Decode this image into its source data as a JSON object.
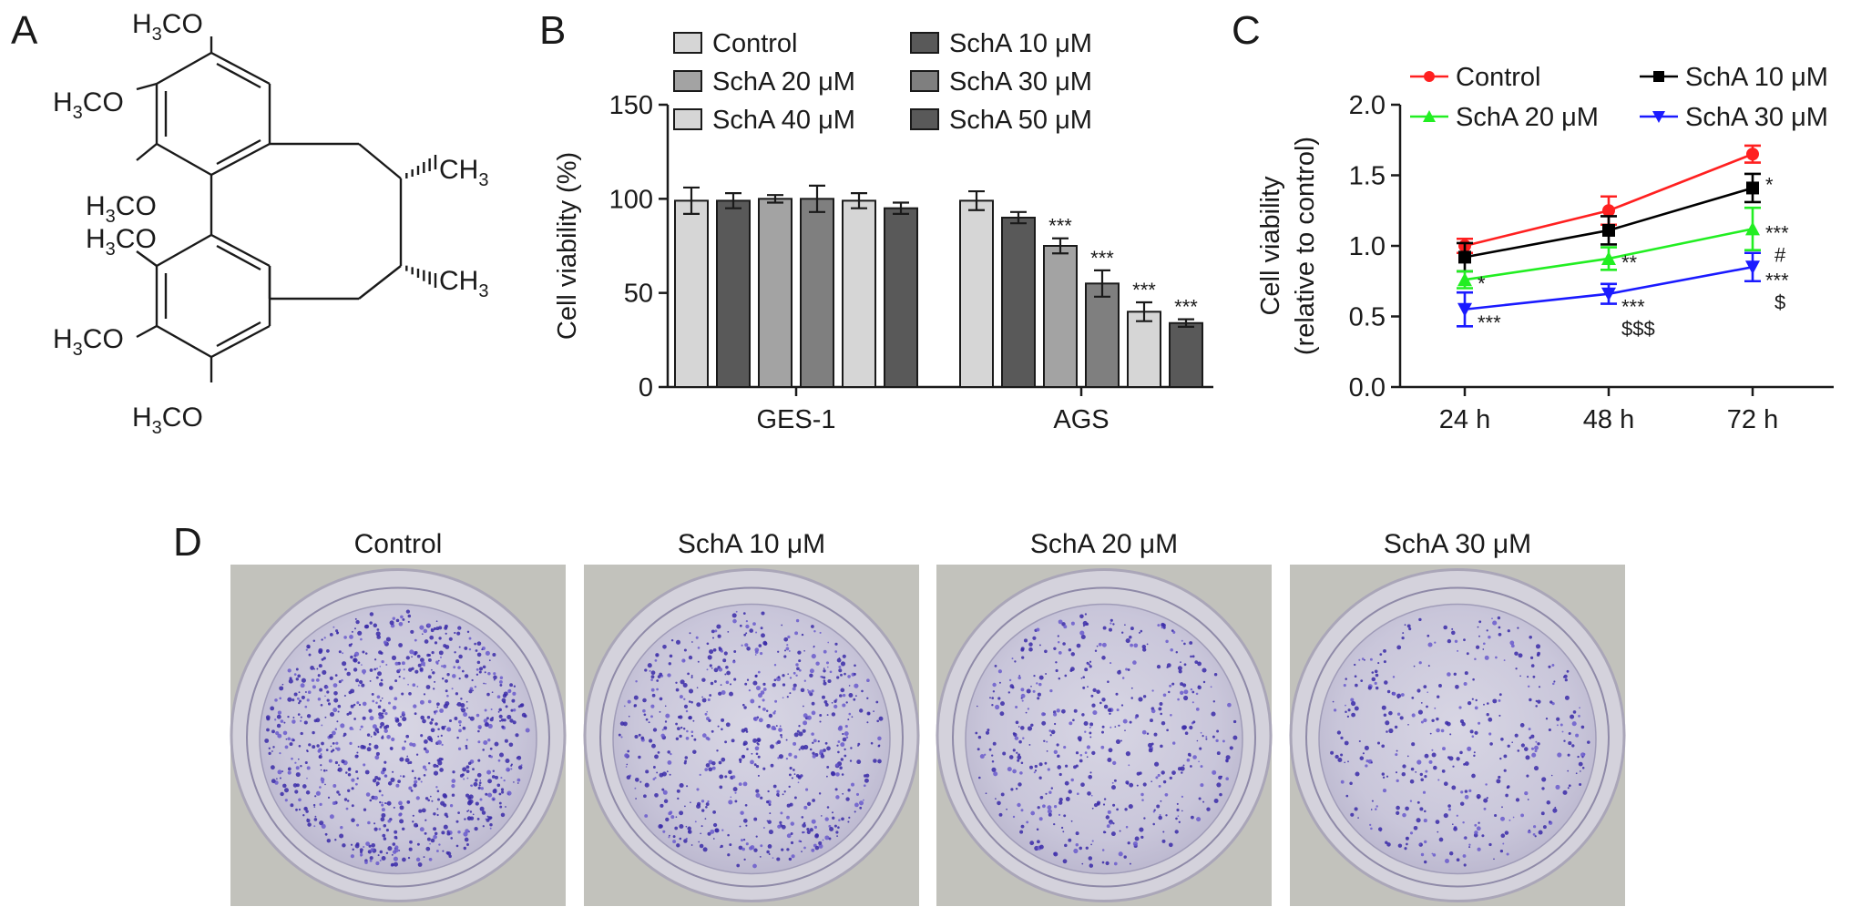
{
  "panels": {
    "a": "A",
    "b": "B",
    "c": "C",
    "d": "D"
  },
  "structure": {
    "labels": [
      "H3CO",
      "H3CO",
      "H3CO",
      "H3CO",
      "H3CO",
      "H3CO",
      "CH3",
      "CH3"
    ]
  },
  "chart_data": [
    {
      "panel": "B",
      "type": "bar",
      "categories": [
        "GES-1",
        "AGS"
      ],
      "ylabel": "Cell viability (%)",
      "xlabel": "",
      "ylim": [
        0,
        150
      ],
      "yticks": [
        0,
        50,
        100,
        150
      ],
      "legend_position": "top",
      "series": [
        {
          "name": "Control",
          "values": [
            99,
            99
          ],
          "errors": [
            7,
            5
          ],
          "color": "#d6d6d6",
          "sig": [
            "",
            ""
          ]
        },
        {
          "name": "SchA 10 μM",
          "values": [
            99,
            90
          ],
          "errors": [
            4,
            3
          ],
          "color": "#595959",
          "sig": [
            "",
            ""
          ]
        },
        {
          "name": "SchA 20 μM",
          "values": [
            100,
            75
          ],
          "errors": [
            2,
            4
          ],
          "color": "#a3a3a3",
          "sig": [
            "",
            "***"
          ]
        },
        {
          "name": "SchA 30 μM",
          "values": [
            100,
            55
          ],
          "errors": [
            7,
            7
          ],
          "color": "#7f7f7f",
          "sig": [
            "",
            "***"
          ]
        },
        {
          "name": "SchA 40 μM",
          "values": [
            99,
            40
          ],
          "errors": [
            4,
            5
          ],
          "color": "#d6d6d6",
          "sig": [
            "",
            "***"
          ]
        },
        {
          "name": "SchA 50 μM",
          "values": [
            95,
            34
          ],
          "errors": [
            3,
            2
          ],
          "color": "#595959",
          "sig": [
            "",
            "***"
          ]
        }
      ]
    },
    {
      "panel": "C",
      "type": "line",
      "categories": [
        "24 h",
        "48 h",
        "72 h"
      ],
      "ylabel_line1": "Cell viability",
      "ylabel_line2": "(relative to control)",
      "ylim": [
        0.0,
        2.0
      ],
      "yticks": [
        "0.0",
        "0.5",
        "1.0",
        "1.5",
        "2.0"
      ],
      "legend_position": "top",
      "series": [
        {
          "name": "Control",
          "marker": "circle",
          "color": "#ff2020",
          "values": [
            1.0,
            1.25,
            1.65
          ],
          "errors": [
            0.05,
            0.1,
            0.06
          ],
          "sig": [
            "",
            "",
            ""
          ]
        },
        {
          "name": "SchA 10 μM",
          "marker": "square",
          "color": "#000000",
          "values": [
            0.92,
            1.11,
            1.41
          ],
          "errors": [
            0.1,
            0.1,
            0.1
          ],
          "sig": [
            "",
            "",
            "*"
          ]
        },
        {
          "name": "SchA 20 μM",
          "marker": "triangle-up",
          "color": "#22ee22",
          "values": [
            0.76,
            0.91,
            1.12
          ],
          "errors": [
            0.06,
            0.08,
            0.15
          ],
          "sig": [
            "*",
            "**",
            "***\n#"
          ]
        },
        {
          "name": "SchA 30 μM",
          "marker": "triangle-down",
          "color": "#1a1aff",
          "values": [
            0.55,
            0.66,
            0.85
          ],
          "errors": [
            0.12,
            0.07,
            0.1
          ],
          "sig": [
            "***",
            "***\n$$$",
            "***\n$"
          ]
        }
      ]
    }
  ],
  "colony_assay": {
    "titles": [
      "Control",
      "SchA 10 μM",
      "SchA 20 μM",
      "SchA 30 μM"
    ],
    "colony_density": [
      1.0,
      0.75,
      0.55,
      0.45
    ]
  }
}
